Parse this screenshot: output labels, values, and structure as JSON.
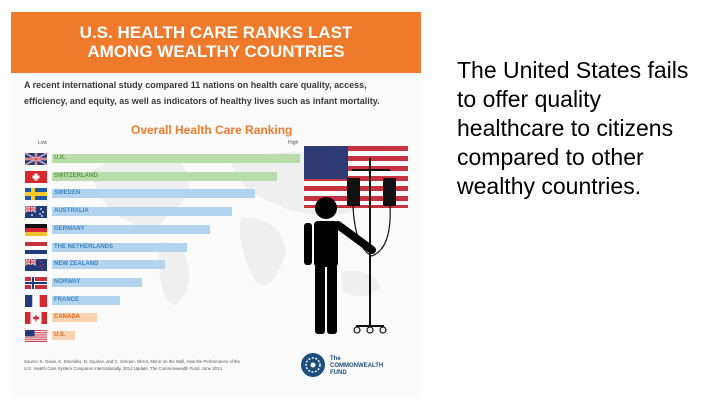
{
  "infographic": {
    "title_line1": "U.S. HEALTH CARE RANKS LAST",
    "title_line2": "AMONG WEALTHY COUNTRIES",
    "intro_line1": "A recent international study compared 11 nations on health care quality, access,",
    "intro_line2": "efficiency, and equity, as well as indicators of healthy lives such as infant mortality.",
    "colors": {
      "banner": "#f07a2c",
      "bar_green": "#b9dcab",
      "bar_blue": "#b3d4ee",
      "bar_orange": "#f9d2b0"
    }
  },
  "chart_data": {
    "type": "bar",
    "title": "Overall Health Care Ranking",
    "axis_low_label": "Low",
    "axis_high_label": "High",
    "orientation": "horizontal",
    "categories": [
      "U.K.",
      "SWITZERLAND",
      "SWEDEN",
      "AUSTRALIA",
      "GERMANY",
      "THE NETHERLANDS",
      "NEW ZEALAND",
      "NORWAY",
      "FRANCE",
      "CANADA",
      "U.S."
    ],
    "values": [
      11,
      10,
      9,
      8,
      7,
      6,
      5,
      4,
      3,
      2,
      1
    ],
    "value_unit": "relative score (approximate)",
    "groups": [
      "green",
      "green",
      "blue",
      "blue",
      "blue",
      "blue",
      "blue",
      "blue",
      "blue",
      "orange",
      "orange"
    ],
    "flag_icons": [
      "uk-flag-icon",
      "switzerland-flag-icon",
      "sweden-flag-icon",
      "australia-flag-icon",
      "germany-flag-icon",
      "netherlands-flag-icon",
      "new-zealand-flag-icon",
      "norway-flag-icon",
      "france-flag-icon",
      "canada-flag-icon",
      "us-flag-icon"
    ],
    "grid": false,
    "legend": "none"
  },
  "footer": {
    "source_line1": "Source: K. Davis, K. Stremikis, D. Squires, and C. Schoen, Mirror, Mirror on the Wall, How the Performance of the",
    "source_line2": "U.S. Health Care System Compares Internationally, 2014 Update, The Commonwealth Fund, June 2014.",
    "fund_line1": "The",
    "fund_line2": "COMMONWEALTH",
    "fund_line3": "FUND"
  },
  "illustration": {
    "icons": [
      "us-flag-icon",
      "patient-figure-icon",
      "iv-drip-stand-icon"
    ]
  },
  "side_text": "The United States fails to offer quality healthcare to citizens compared to other wealthy countries."
}
